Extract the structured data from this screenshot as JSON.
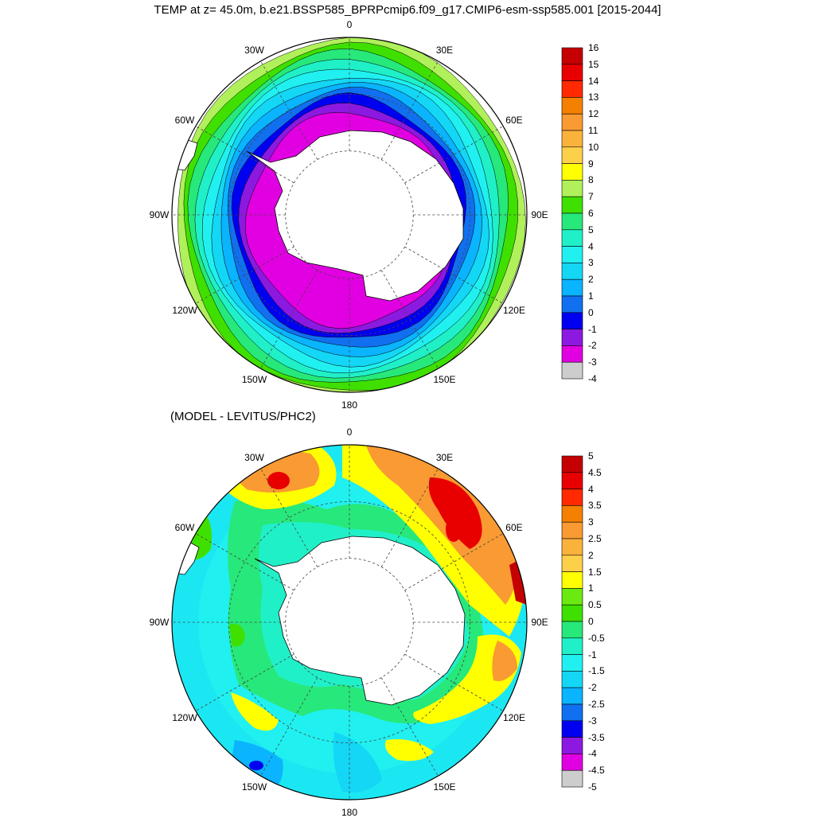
{
  "title": "TEMP at z=  45.0m, b.e21.BSSP585_BPRPcmip6.f09_g17.CMIP6-esm-ssp585.001 [2015-2044]",
  "panel_bottom_title": "(MODEL - LEVITUS/PHC2)",
  "longitude_labels": [
    "0",
    "30E",
    "60E",
    "90E",
    "120E",
    "150E",
    "180",
    "150W",
    "120W",
    "90W",
    "60W",
    "30W"
  ],
  "land_color": "#ffffff",
  "top_colorbar": {
    "labels": [
      "16",
      "15",
      "14",
      "13",
      "12",
      "11",
      "10",
      "9",
      "8",
      "7",
      "6",
      "5",
      "4",
      "3",
      "2",
      "1",
      "0",
      "-1",
      "-2",
      "-3",
      "-4"
    ],
    "colors": [
      "#c40000",
      "#e80000",
      "#ff2a00",
      "#f58000",
      "#f99a32",
      "#fbb23c",
      "#fdd04a",
      "#ffff00",
      "#b0f05a",
      "#3fe000",
      "#27e87a",
      "#20f0c8",
      "#20f0f0",
      "#14d6f5",
      "#0ab4ff",
      "#1070f0",
      "#0000f0",
      "#8c19e0",
      "#e100e1",
      "#cdcdcd",
      "#707070"
    ]
  },
  "bottom_colorbar": {
    "labels": [
      "5",
      "4.5",
      "4",
      "3.5",
      "3",
      "2.5",
      "2",
      "1.5",
      "1",
      "0.5",
      "0",
      "-0.5",
      "-1",
      "-1.5",
      "-2",
      "-2.5",
      "-3",
      "-3.5",
      "-4",
      "-4.5",
      "-5"
    ],
    "colors": [
      "#c40000",
      "#e80000",
      "#ff2a00",
      "#f58000",
      "#f99a32",
      "#fbb23c",
      "#fdd04a",
      "#ffff00",
      "#6aea10",
      "#3fe000",
      "#27e87a",
      "#20f0c8",
      "#20f0f0",
      "#14d6f5",
      "#0ab4ff",
      "#1070f0",
      "#0000f0",
      "#8c19e0",
      "#e100e1",
      "#cdcdcd",
      "#707070"
    ]
  },
  "top_map_bands": [
    {
      "level": "8",
      "color": "#b0f05a"
    },
    {
      "level": "7",
      "color": "#3fe000"
    },
    {
      "level": "6",
      "color": "#27e87a"
    },
    {
      "level": "5",
      "color": "#20f0c8"
    },
    {
      "level": "4",
      "color": "#20f0f0"
    },
    {
      "level": "3",
      "color": "#14d6f5"
    },
    {
      "level": "2",
      "color": "#0ab4ff"
    },
    {
      "level": "1",
      "color": "#1070f0"
    },
    {
      "level": "0",
      "color": "#0000f0"
    },
    {
      "level": "-1",
      "color": "#8c19e0"
    },
    {
      "level": "-2",
      "color": "#e100e1"
    }
  ]
}
